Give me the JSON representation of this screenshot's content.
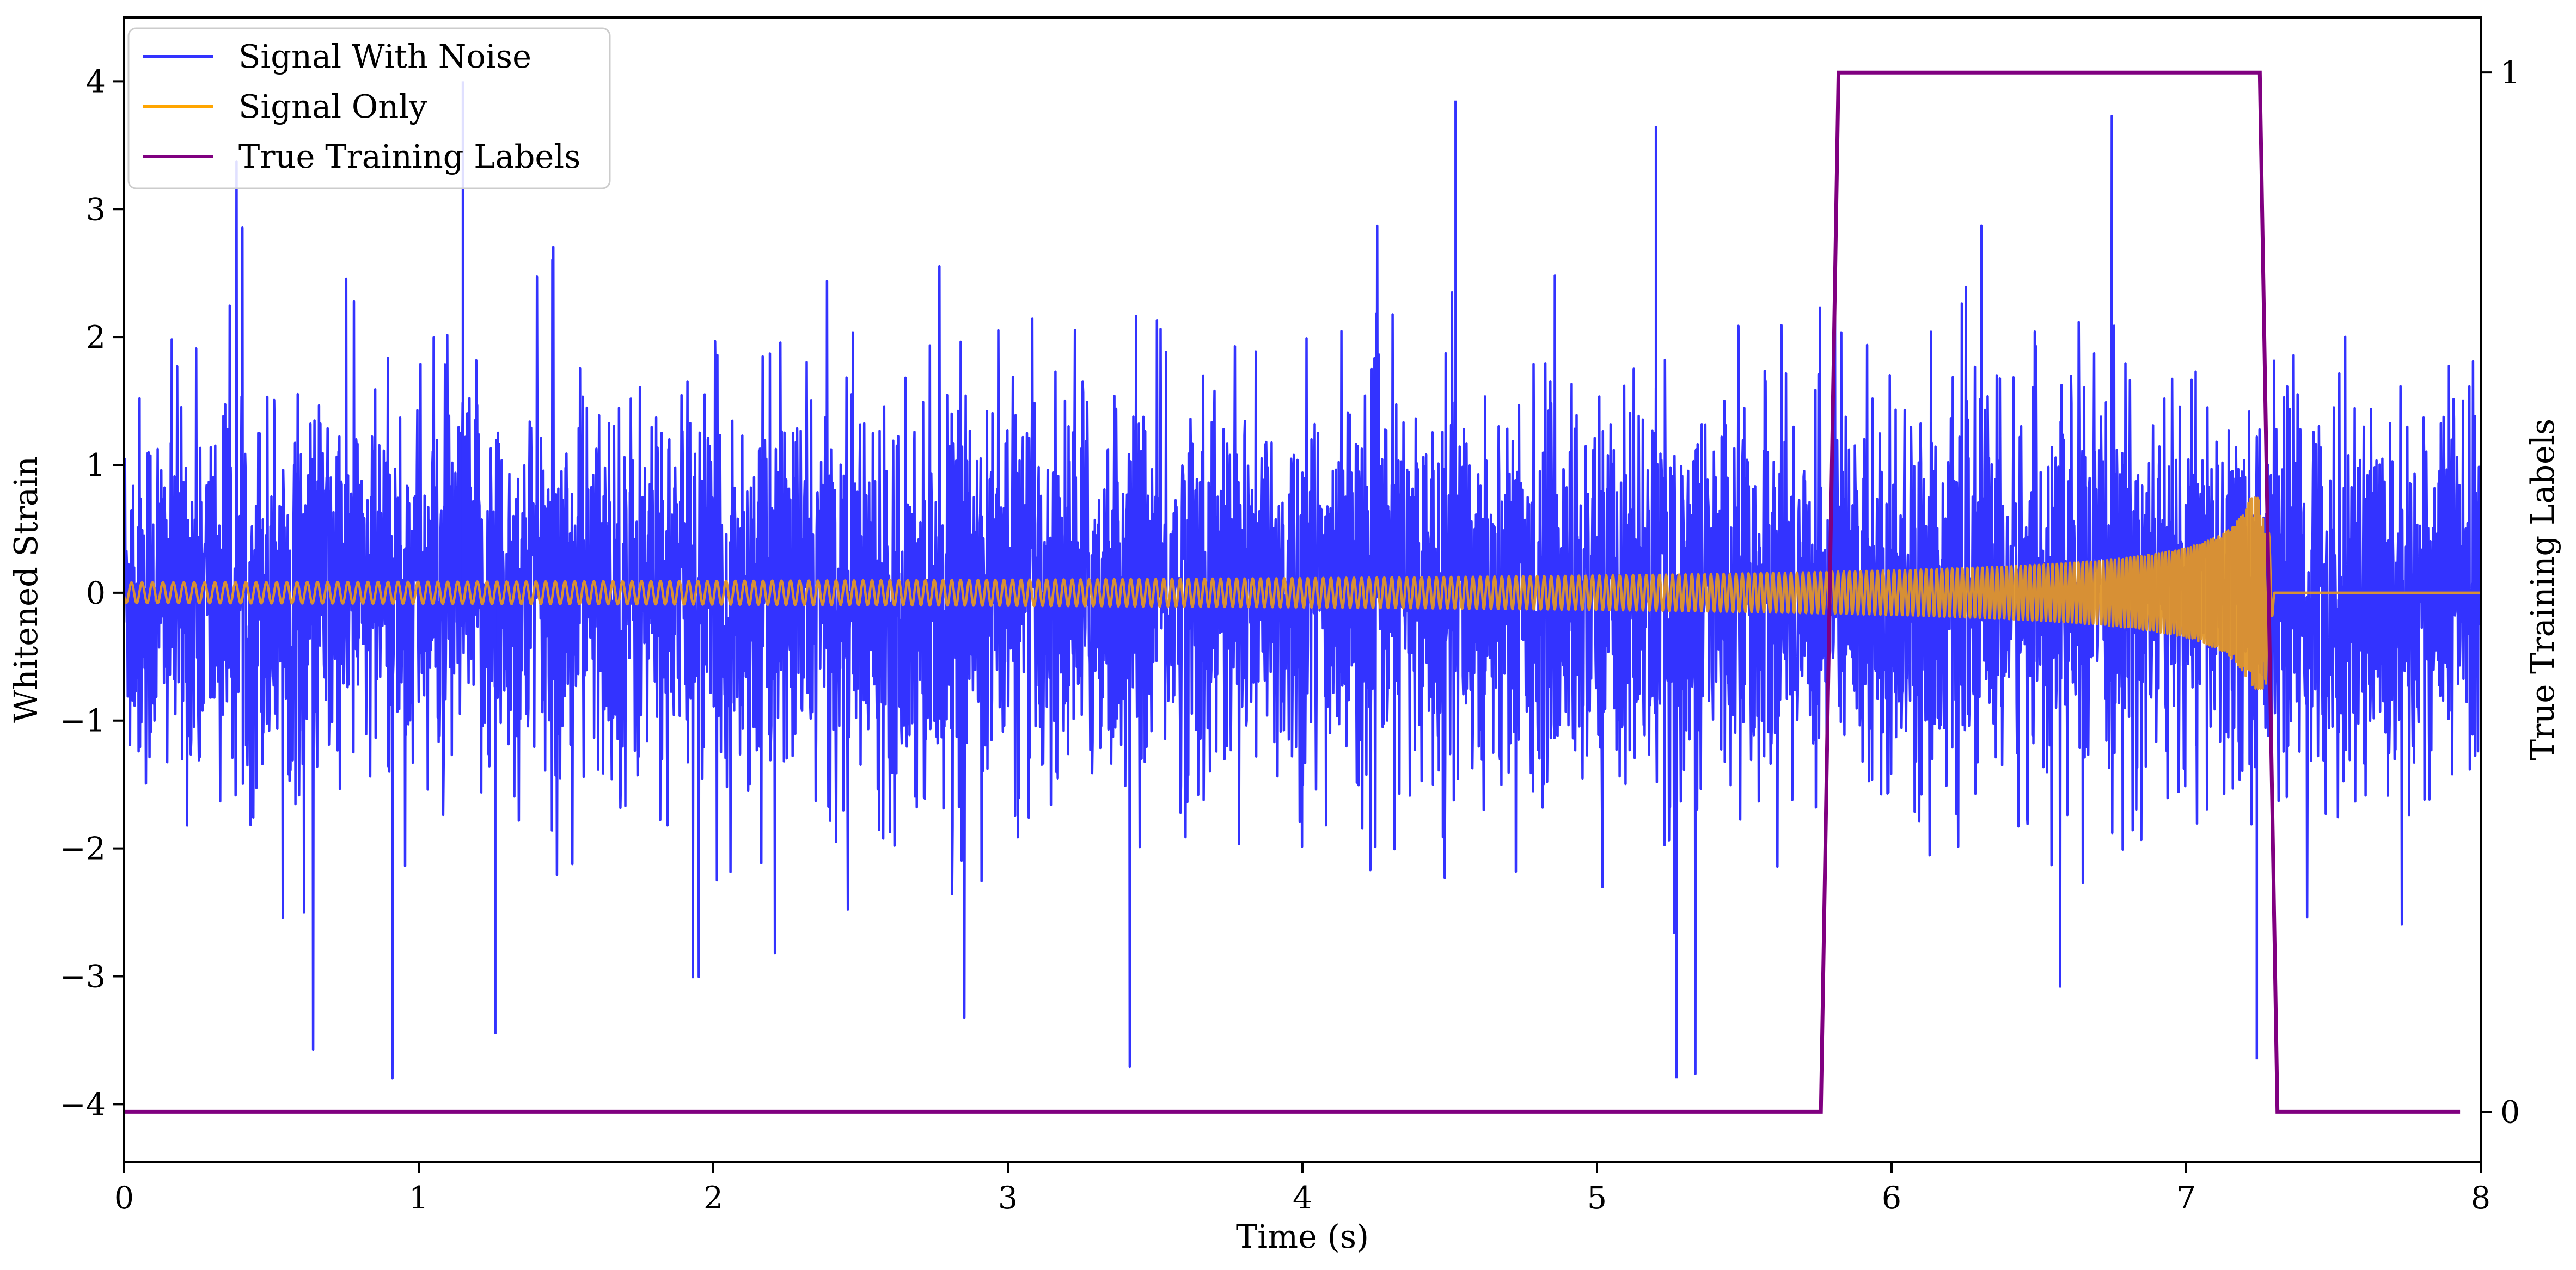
{
  "chart_data": {
    "type": "line",
    "title": "",
    "xlabel": "Time (s)",
    "ylabel": "Whitened Strain",
    "y2label": "True Training Labels",
    "xlim": [
      0,
      8
    ],
    "ylim": [
      -4.45,
      4.5
    ],
    "y2lim": [
      -0.048,
      1.053
    ],
    "xticks": [
      0,
      1,
      2,
      3,
      4,
      5,
      6,
      7,
      8
    ],
    "xtick_labels": [
      "0",
      "1",
      "2",
      "3",
      "4",
      "5",
      "6",
      "7",
      "8"
    ],
    "yticks": [
      -4,
      -3,
      -2,
      -1,
      0,
      1,
      2,
      3,
      4
    ],
    "ytick_labels": [
      "−4",
      "−3",
      "−2",
      "−1",
      "0",
      "1",
      "2",
      "3",
      "4"
    ],
    "y2ticks": [
      0,
      1
    ],
    "y2tick_labels": [
      "0",
      "1"
    ],
    "grid": false,
    "legend_position": "upper-left",
    "series": [
      {
        "name": "Signal With Noise",
        "axis": "left",
        "color": "#3333ff",
        "kind": "noise",
        "x_range": [
          0,
          8
        ],
        "typical_std": 0.75,
        "min": -3.8,
        "max": 4.05,
        "notable_peaks": [
          {
            "x": 1.15,
            "y": 4.0
          },
          {
            "x": 4.52,
            "y": 3.85
          },
          {
            "x": 5.2,
            "y": 3.65
          },
          {
            "x": 5.27,
            "y": -3.8
          },
          {
            "x": 7.24,
            "y": -3.65
          },
          {
            "x": 1.26,
            "y": -3.45
          }
        ]
      },
      {
        "name": "Signal Only",
        "axis": "left",
        "color": "#ffa500",
        "kind": "chirp",
        "x_range": [
          0,
          7.3
        ],
        "amplitude_start": 0.08,
        "amplitude_end": 0.75,
        "merger_time": 7.27,
        "post_merger_value": 0
      },
      {
        "name": "True Training Labels",
        "axis": "right",
        "color": "#800080",
        "x": [
          0,
          5.76,
          5.82,
          7.25,
          7.31,
          7.93
        ],
        "values": [
          0,
          0,
          1,
          1,
          0,
          0
        ]
      }
    ]
  }
}
